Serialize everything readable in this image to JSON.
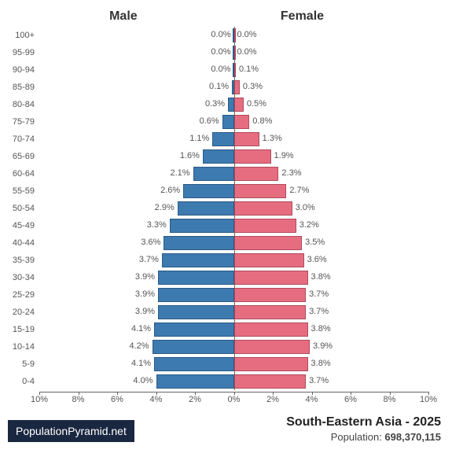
{
  "chart": {
    "type": "population-pyramid",
    "male_label": "Male",
    "female_label": "Female",
    "male_color": "#3d7ab0",
    "female_color": "#e66d80",
    "male_border": "#2a5a85",
    "female_border": "#b04a5a",
    "background_color": "#ffffff",
    "axis_color": "#666666",
    "text_color": "#555555",
    "header_fontsize": 16,
    "label_fontsize": 11,
    "max_percent": 10,
    "x_ticks": [
      "10%",
      "8%",
      "6%",
      "4%",
      "2%",
      "0%",
      "2%",
      "4%",
      "6%",
      "8%",
      "10%"
    ],
    "age_groups": [
      {
        "label": "100+",
        "male": 0.0,
        "female": 0.0,
        "male_s": "0.0%",
        "female_s": "0.0%"
      },
      {
        "label": "95-99",
        "male": 0.0,
        "female": 0.0,
        "male_s": "0.0%",
        "female_s": "0.0%"
      },
      {
        "label": "90-94",
        "male": 0.0,
        "female": 0.1,
        "male_s": "0.0%",
        "female_s": "0.1%"
      },
      {
        "label": "85-89",
        "male": 0.1,
        "female": 0.3,
        "male_s": "0.1%",
        "female_s": "0.3%"
      },
      {
        "label": "80-84",
        "male": 0.3,
        "female": 0.5,
        "male_s": "0.3%",
        "female_s": "0.5%"
      },
      {
        "label": "75-79",
        "male": 0.6,
        "female": 0.8,
        "male_s": "0.6%",
        "female_s": "0.8%"
      },
      {
        "label": "70-74",
        "male": 1.1,
        "female": 1.3,
        "male_s": "1.1%",
        "female_s": "1.3%"
      },
      {
        "label": "65-69",
        "male": 1.6,
        "female": 1.9,
        "male_s": "1.6%",
        "female_s": "1.9%"
      },
      {
        "label": "60-64",
        "male": 2.1,
        "female": 2.3,
        "male_s": "2.1%",
        "female_s": "2.3%"
      },
      {
        "label": "55-59",
        "male": 2.6,
        "female": 2.7,
        "male_s": "2.6%",
        "female_s": "2.7%"
      },
      {
        "label": "50-54",
        "male": 2.9,
        "female": 3.0,
        "male_s": "2.9%",
        "female_s": "3.0%"
      },
      {
        "label": "45-49",
        "male": 3.3,
        "female": 3.2,
        "male_s": "3.3%",
        "female_s": "3.2%"
      },
      {
        "label": "40-44",
        "male": 3.6,
        "female": 3.5,
        "male_s": "3.6%",
        "female_s": "3.5%"
      },
      {
        "label": "35-39",
        "male": 3.7,
        "female": 3.6,
        "male_s": "3.7%",
        "female_s": "3.6%"
      },
      {
        "label": "30-34",
        "male": 3.9,
        "female": 3.8,
        "male_s": "3.9%",
        "female_s": "3.8%"
      },
      {
        "label": "25-29",
        "male": 3.9,
        "female": 3.7,
        "male_s": "3.9%",
        "female_s": "3.7%"
      },
      {
        "label": "20-24",
        "male": 3.9,
        "female": 3.7,
        "male_s": "3.9%",
        "female_s": "3.7%"
      },
      {
        "label": "15-19",
        "male": 4.1,
        "female": 3.8,
        "male_s": "4.1%",
        "female_s": "3.8%"
      },
      {
        "label": "10-14",
        "male": 4.2,
        "female": 3.9,
        "male_s": "4.2%",
        "female_s": "3.9%"
      },
      {
        "label": "5-9",
        "male": 4.1,
        "female": 3.8,
        "male_s": "4.1%",
        "female_s": "3.8%"
      },
      {
        "label": "0-4",
        "male": 4.0,
        "female": 3.7,
        "male_s": "4.0%",
        "female_s": "3.7%"
      }
    ]
  },
  "footer": {
    "brand": "PopulationPyramid.net",
    "region_year": "South-Eastern Asia - 2025",
    "population_label": "Population: ",
    "population_value": "698,370,115"
  }
}
